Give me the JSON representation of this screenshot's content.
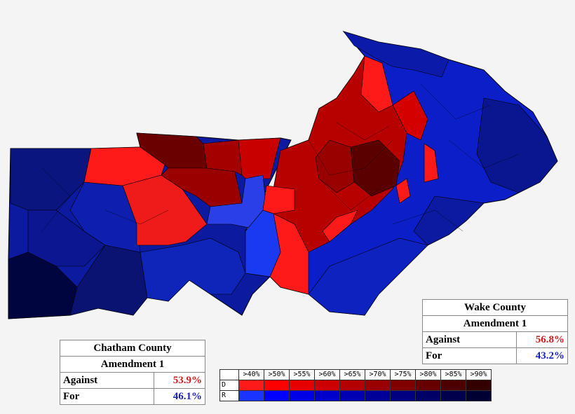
{
  "wake_box": {
    "title": "Wake County",
    "subtitle": "Amendment 1",
    "rows": [
      {
        "label": "Against",
        "value": "56.8%"
      },
      {
        "label": "For",
        "value": "43.2%"
      }
    ]
  },
  "chatham_box": {
    "title": "Chatham County",
    "subtitle": "Amendment 1",
    "rows": [
      {
        "label": "Against",
        "value": "53.9%"
      },
      {
        "label": "For",
        "value": "46.1%"
      }
    ]
  },
  "legend": {
    "thresholds": [
      ">40%",
      ">50%",
      ">55%",
      ">60%",
      ">65%",
      ">70%",
      ">75%",
      ">80%",
      ">85%",
      ">90%"
    ],
    "row_labels": [
      "D",
      "R"
    ],
    "d_colors": [
      "#ff1a1a",
      "#ff0000",
      "#e60000",
      "#cc0000",
      "#b30000",
      "#990000",
      "#800000",
      "#660000",
      "#4d0000",
      "#330000"
    ],
    "r_colors": [
      "#1a33ff",
      "#0000ff",
      "#0000e6",
      "#0000cc",
      "#0000b3",
      "#000099",
      "#000080",
      "#000066",
      "#00004d",
      "#000033"
    ]
  }
}
